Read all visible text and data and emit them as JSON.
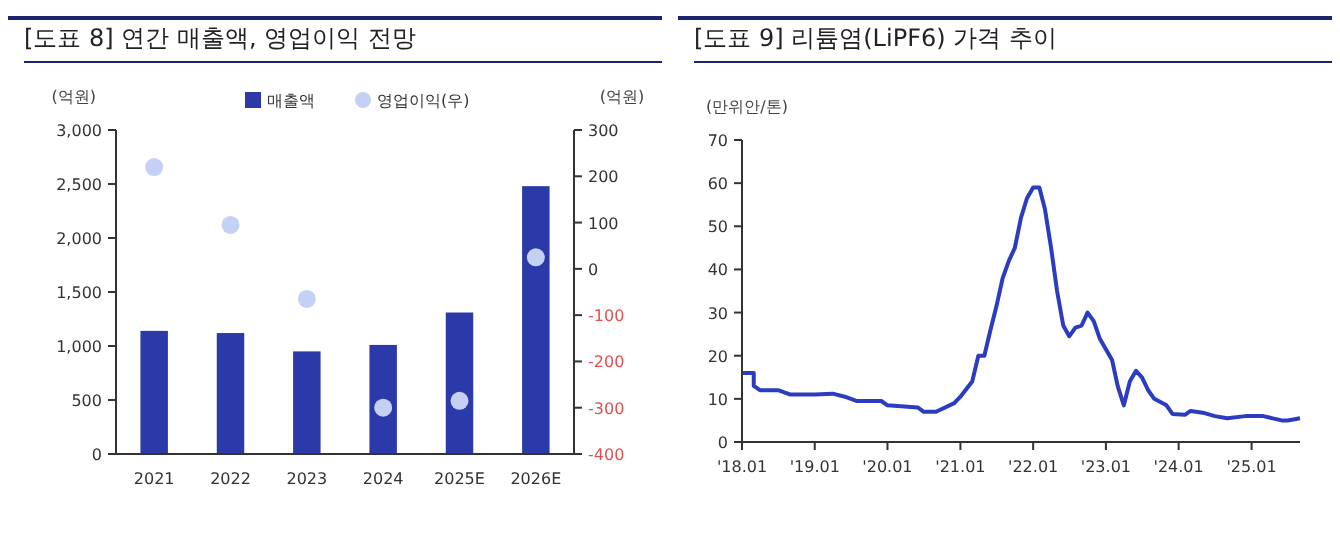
{
  "chart_data": [
    {
      "type": "bar",
      "title": "[도표 8] 연간 매출액, 영업이익 전망",
      "ylabel": "(억원)",
      "y2label": "(억원)",
      "categories": [
        "2021",
        "2022",
        "2023",
        "2024",
        "2025E",
        "2026E"
      ],
      "series": [
        {
          "name": "매출액",
          "color": "#2b3aa8",
          "values": [
            1140,
            1120,
            950,
            1010,
            1310,
            2480
          ]
        },
        {
          "name": "영업이익(우)",
          "type": "scatter",
          "axis": "y2",
          "color": "#c5d0f5",
          "marker": "circle",
          "values": [
            220,
            95,
            -65,
            -300,
            -285,
            25
          ]
        }
      ],
      "ylim": [
        0,
        3000
      ],
      "yticks": [
        {
          "value": 0,
          "label": "0"
        },
        {
          "value": 500,
          "label": "500"
        },
        {
          "value": 1000,
          "label": "1,000"
        },
        {
          "value": 1500,
          "label": "1,500"
        },
        {
          "value": 2000,
          "label": "2,000"
        },
        {
          "value": 2500,
          "label": "2,500"
        },
        {
          "value": 3000,
          "label": "3,000"
        }
      ],
      "y2lim": [
        -400,
        300
      ],
      "y2ticks": [
        -400,
        -300,
        -200,
        -100,
        0,
        100,
        200,
        300
      ],
      "legend": "top",
      "grid": false
    },
    {
      "type": "line",
      "title": "[도표 9] 리튬염(LiPF6) 가격 추이",
      "ylabel": "(만위안/톤)",
      "series": [
        {
          "color": "#2c3cc0",
          "line_style": "solid",
          "x": [
            "2018-01",
            "2018-03",
            "2018-03",
            "2018-04",
            "2018-07",
            "2018-09",
            "2019-01",
            "2019-04",
            "2019-06",
            "2019-08",
            "2019-12",
            "2020-01",
            "2020-06",
            "2020-07",
            "2020-09",
            "2020-12",
            "2021-01",
            "2021-03",
            "2021-04",
            "2021-05",
            "2021-06",
            "2021-07",
            "2021-08",
            "2021-09",
            "2021-10",
            "2021-11",
            "2021-12",
            "2022-01",
            "2022-02",
            "2022-03",
            "2022-04",
            "2022-05",
            "2022-06",
            "2022-07",
            "2022-08",
            "2022-09",
            "2022-10",
            "2022-11",
            "2022-12",
            "2023-02",
            "2023-03",
            "2023-04",
            "2023-05",
            "2023-06",
            "2023-07",
            "2023-08",
            "2023-09",
            "2023-11",
            "2023-12",
            "2024-02",
            "2024-03",
            "2024-05",
            "2024-07",
            "2024-09",
            "2024-12",
            "2025-03",
            "2025-06",
            "2025-07",
            "2025-09"
          ],
          "values": [
            16,
            16,
            13,
            12,
            12,
            11,
            11,
            11.2,
            10.5,
            9.5,
            9.5,
            8.5,
            8,
            7,
            7,
            9,
            10.5,
            14,
            20,
            20,
            26,
            31.5,
            38,
            42,
            45,
            52,
            56.5,
            59,
            59,
            54,
            45,
            35,
            27,
            24.5,
            26.5,
            27,
            30,
            28,
            24,
            19,
            13,
            8.5,
            14,
            16.5,
            15,
            12,
            10,
            8.5,
            6.5,
            6.3,
            7.2,
            6.8,
            6,
            5.5,
            6,
            6,
            5,
            5,
            5.5
          ]
        }
      ],
      "xlim": [
        "2018-01",
        "2025-09"
      ],
      "xticks": [
        {
          "value": "2018-01",
          "label": "'18.01"
        },
        {
          "value": "2019-01",
          "label": "'19.01"
        },
        {
          "value": "2020-01",
          "label": "'20.01"
        },
        {
          "value": "2021-01",
          "label": "'21.01"
        },
        {
          "value": "2022-01",
          "label": "'22.01"
        },
        {
          "value": "2023-01",
          "label": "'23.01"
        },
        {
          "value": "2024-01",
          "label": "'24.01"
        },
        {
          "value": "2025-01",
          "label": "'25.01"
        }
      ],
      "ylim": [
        0,
        70
      ],
      "yticks": [
        0,
        10,
        20,
        30,
        40,
        50,
        60,
        70
      ],
      "grid": false,
      "legend": false
    }
  ]
}
